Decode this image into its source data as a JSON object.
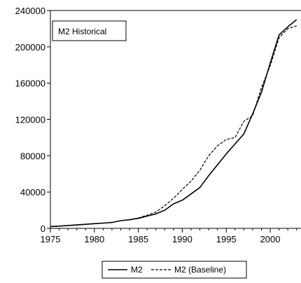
{
  "chart_data": {
    "type": "line",
    "x": [
      1975,
      1976,
      1977,
      1978,
      1979,
      1980,
      1981,
      1982,
      1983,
      1984,
      1985,
      1986,
      1987,
      1988,
      1989,
      1990,
      1991,
      1992,
      1993,
      1994,
      1995,
      1996,
      1997,
      1998,
      1999,
      2000,
      2001,
      2002,
      2003
    ],
    "series": [
      {
        "name": "M2",
        "style": "solid",
        "color": "#000000",
        "values": [
          2000,
          2500,
          3200,
          3800,
          4500,
          5200,
          5800,
          6500,
          8500,
          9500,
          11000,
          13500,
          16000,
          20000,
          27000,
          31000,
          38000,
          45000,
          58000,
          70000,
          82000,
          93000,
          104000,
          126000,
          150000,
          182000,
          213000,
          222000,
          230000
        ]
      },
      {
        "name": "M2 (Baseline)",
        "style": "dashed",
        "color": "#000000",
        "values": [
          2000,
          2500,
          3200,
          3800,
          4500,
          5200,
          5800,
          6500,
          8500,
          9500,
          11500,
          14500,
          18000,
          25000,
          33000,
          43000,
          52000,
          64000,
          80000,
          91000,
          98000,
          100000,
          118000,
          124000,
          155000,
          179000,
          210000,
          220000,
          223000
        ]
      }
    ],
    "annotations": [
      "M2 Historical"
    ],
    "xlim": [
      1975,
      2003.5
    ],
    "ylim": [
      0,
      240000
    ],
    "x_ticks": [
      1975,
      1980,
      1985,
      1990,
      1995,
      2000
    ],
    "y_ticks": [
      0,
      40000,
      80000,
      120000,
      160000,
      200000,
      240000
    ],
    "title": "",
    "xlabel": "",
    "ylabel": "",
    "grid": false,
    "legend_position": "bottom"
  }
}
